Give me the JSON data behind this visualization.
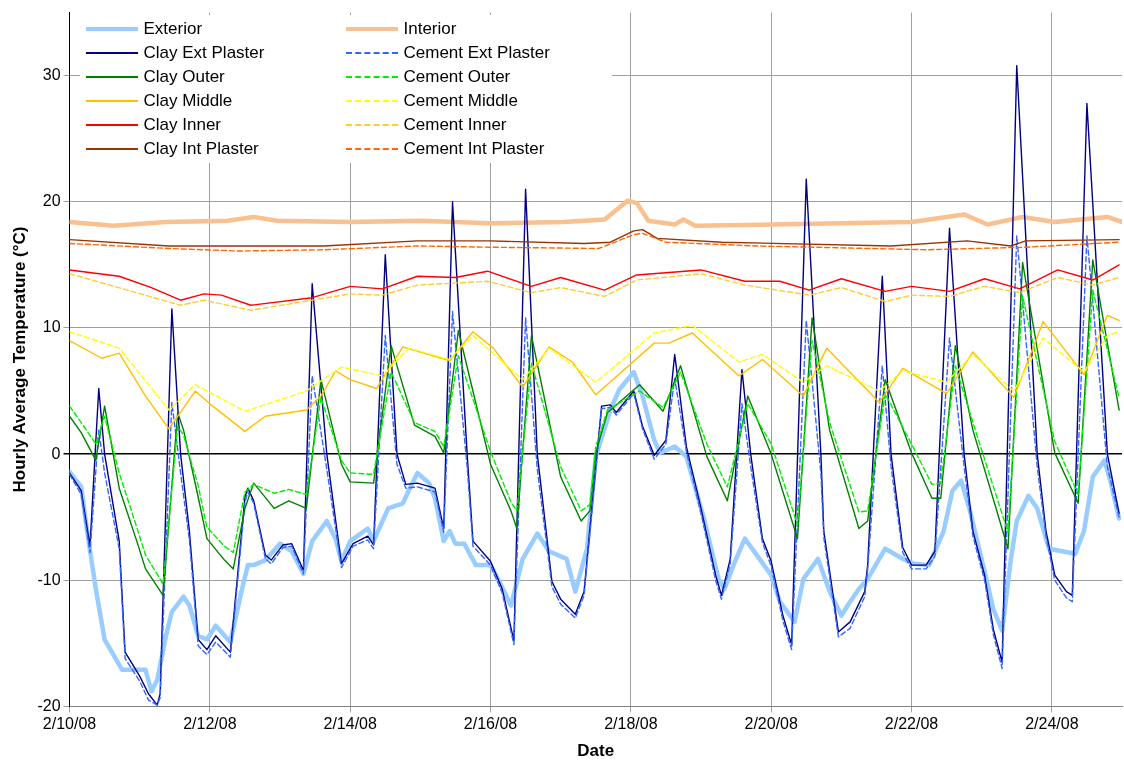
{
  "chart_data": {
    "type": "line",
    "xlabel": "Date",
    "ylabel": "Hourly Average Temperature (°C)",
    "xlim": [
      "--02-10",
      "--02-25"
    ],
    "ylim": [
      -20,
      35
    ],
    "xticks": [
      {
        "value": "--02-10",
        "label": "2/10/08"
      },
      {
        "value": "--02-12",
        "label": "2/12/08"
      },
      {
        "value": "--02-14",
        "label": "2/14/08"
      },
      {
        "value": "--02-16",
        "label": "2/16/08"
      },
      {
        "value": "--02-18",
        "label": "2/18/08"
      },
      {
        "value": "--02-20",
        "label": "2/20/08"
      },
      {
        "value": "--02-22",
        "label": "2/22/08"
      },
      {
        "value": "--02-24",
        "label": "2/24/08"
      }
    ],
    "yticks": [
      -20,
      -10,
      0,
      10,
      20,
      30
    ],
    "grid": true,
    "legend": "top left",
    "marker": "none",
    "series": [
      {
        "name": "Exterior",
        "color": "#99ccff",
        "line_style": "solid",
        "x": [
          "--02-10T00:00",
          "--02-10T04:00",
          "--02-10T06:00",
          "--02-10T09:00",
          "--02-10T12:00",
          "--02-10T18:00",
          "--02-10T21:00",
          "--02-11T02:00",
          "--02-11T04:00",
          "--02-11T06:00",
          "--02-11T09:00",
          "--02-11T11:00",
          "--02-11T15:00",
          "--02-11T17:00",
          "--02-11T20:00",
          "--02-11T23:00",
          "--02-12T02:00",
          "--02-12T07:00",
          "--02-12T11:00",
          "--02-12T13:00",
          "--02-12T15:00",
          "--02-12T19:00",
          "--02-13T00:00",
          "--02-13T04:00",
          "--02-13T08:00",
          "--02-13T11:00",
          "--02-13T16:00",
          "--02-13T19:00",
          "--02-13T21:00",
          "--02-14T00:00",
          "--02-14T06:00",
          "--02-14T08:00",
          "--02-14T13:00",
          "--02-14T18:00",
          "--02-14T20:00",
          "--02-14T23:00",
          "--02-15T03:00",
          "--02-15T05:00",
          "--02-15T08:00",
          "--02-15T10:00",
          "--02-15T12:00",
          "--02-15T15:00",
          "--02-15T19:00",
          "--02-16T00:00",
          "--02-16T03:00",
          "--02-16T07:00",
          "--02-16T11:00",
          "--02-16T16:00",
          "--02-16T20:00",
          "--02-17T02:00",
          "--02-17T05:00",
          "--02-17T09:00",
          "--02-17T12:00",
          "--02-17T17:00",
          "--02-17T20:00",
          "--02-18T01:00",
          "--02-18T04:00",
          "--02-18T08:00",
          "--02-18T10:00",
          "--02-18T15:00",
          "--02-18T19:00",
          "--02-19T01:00",
          "--02-19T06:00",
          "--02-19T08:00",
          "--02-19T12:00",
          "--02-19T15:00",
          "--02-19T20:00",
          "--02-20T00:00",
          "--02-20T03:00",
          "--02-20T08:00",
          "--02-20T11:00",
          "--02-20T16:00",
          "--02-20T20:00",
          "--02-21T00:00",
          "--02-21T03:00",
          "--02-21T06:00",
          "--02-21T09:00",
          "--02-21T15:00",
          "--02-21T21:00",
          "--02-22T01:00",
          "--02-22T06:00",
          "--02-22T11:00",
          "--02-22T14:00",
          "--02-22T17:00",
          "--02-22T20:00",
          "--02-23T01:00",
          "--02-23T04:00",
          "--02-23T07:00",
          "--02-23T10:00",
          "--02-23T12:00",
          "--02-23T16:00",
          "--02-23T19:00",
          "--02-23T23:00",
          "--02-24T08:00",
          "--02-24T11:00",
          "--02-24T14:00",
          "--02-24T18:00",
          "--02-24T20:00",
          "--02-24T23:00"
        ],
        "values": [
          -1.4,
          -2.6,
          -6.1,
          -10.7,
          -14.7,
          -17.1,
          -17.1,
          -17.1,
          -18.8,
          -17.9,
          -14.4,
          -12.5,
          -11.3,
          -12,
          -14.4,
          -14.7,
          -13.6,
          -14.9,
          -10.7,
          -8.8,
          -8.8,
          -8.4,
          -7.1,
          -7.7,
          -9.5,
          -6.9,
          -5.3,
          -6.7,
          -8.5,
          -6.9,
          -5.9,
          -6.9,
          -4.3,
          -3.9,
          -2.9,
          -1.5,
          -2.3,
          -3.5,
          -6.9,
          -6.1,
          -7.1,
          -7.1,
          -8.8,
          -8.8,
          -10.1,
          -12,
          -8.3,
          -6.3,
          -7.7,
          -8.3,
          -10.9,
          -7.5,
          -0.2,
          3.5,
          5.1,
          6.5,
          4.6,
          1.1,
          0.1,
          0.6,
          -0.2,
          -5.1,
          -9.9,
          -10.7,
          -8.3,
          -6.7,
          -8.3,
          -9.6,
          -11.7,
          -13.3,
          -9.9,
          -8.3,
          -10.9,
          -12.8,
          -11.7,
          -10.7,
          -9.9,
          -7.5,
          -8.3,
          -8.7,
          -8.8,
          -6.1,
          -2.9,
          -2.1,
          -4.5,
          -9.3,
          -12.3,
          -14,
          -8.3,
          -5.3,
          -3.3,
          -4.3,
          -7.5,
          -7.9,
          -6.1,
          -1.8,
          -0.5,
          -2.1,
          -5.1
        ]
      },
      {
        "name": "Interior",
        "color": "#fac090",
        "line_style": "solid",
        "x": [
          "--02-10T00:00",
          "--02-10T15:00",
          "--02-11T09:00",
          "--02-12T06:00",
          "--02-12T15:00",
          "--02-12T23:00",
          "--02-14T00:00",
          "--02-15T00:00",
          "--02-16T00:00",
          "--02-17T01:00",
          "--02-17T15:00",
          "--02-17T23:00",
          "--02-18T02:00",
          "--02-18T06:00",
          "--02-18T15:00",
          "--02-18T18:00",
          "--02-18T22:00",
          "--02-20T00:00",
          "--02-22T00:00",
          "--02-22T18:00",
          "--02-23T02:00",
          "--02-23T14:00",
          "--02-24T01:00",
          "--02-24T19:00",
          "--02-25T00:00"
        ],
        "values": [
          18.4,
          18.1,
          18.4,
          18.5,
          18.8,
          18.5,
          18.4,
          18.5,
          18.3,
          18.4,
          18.6,
          20.1,
          19.9,
          18.5,
          18.2,
          18.6,
          18.1,
          18.2,
          18.4,
          19,
          18.2,
          18.8,
          18.4,
          18.8,
          18.4
        ]
      },
      {
        "name": "Clay Ext Plaster",
        "color": "#000080",
        "line_style": "solid",
        "x": [
          "--02-10T00:00",
          "--02-10T04:00",
          "--02-10T07:00",
          "--02-10T10:00",
          "--02-10T12:00",
          "--02-10T17:00",
          "--02-10T19:00",
          "--02-11T00:00",
          "--02-11T03:00",
          "--02-11T06:00",
          "--02-11T07:00",
          "--02-11T11:00",
          "--02-11T14:00",
          "--02-11T17:00",
          "--02-11T20:00",
          "--02-11T23:00",
          "--02-12T02:00",
          "--02-12T07:00",
          "--02-12T08:00",
          "--02-12T12:00",
          "--02-12T13:00",
          "--02-12T15:00",
          "--02-12T19:00",
          "--02-12T21:00",
          "--02-13T01:00",
          "--02-13T04:00",
          "--02-13T08:00",
          "--02-13T11:00",
          "--02-13T16:00",
          "--02-13T21:00",
          "--02-14T01:00",
          "--02-14T06:00",
          "--02-14T08:00",
          "--02-14T12:00",
          "--02-14T16:00",
          "--02-14T19:00",
          "--02-14T23:00",
          "--02-15T05:00",
          "--02-15T08:00",
          "--02-15T11:00",
          "--02-15T16:00",
          "--02-15T18:00",
          "--02-16T00:00",
          "--02-16T04:00",
          "--02-16T08:00",
          "--02-16T12:00",
          "--02-16T16:00",
          "--02-16T21:00",
          "--02-17T00:00",
          "--02-17T05:00",
          "--02-17T08:00",
          "--02-17T11:00",
          "--02-17T14:00",
          "--02-17T17:00",
          "--02-17T19:00",
          "--02-18T01:00",
          "--02-18T04:00",
          "--02-18T08:00",
          "--02-18T12:00",
          "--02-18T15:00",
          "--02-18T19:00",
          "--02-19T00:00",
          "--02-19T05:00",
          "--02-19T07:00",
          "--02-19T10:00",
          "--02-19T14:00",
          "--02-19T17:00",
          "--02-19T21:00",
          "--02-20T00:00",
          "--02-20T04:00",
          "--02-20T07:00",
          "--02-20T12:00",
          "--02-20T17:00",
          "--02-20T18:00",
          "--02-20T23:00",
          "--02-21T03:00",
          "--02-21T08:00",
          "--02-21T09:00",
          "--02-21T14:00",
          "--02-21T17:00",
          "--02-21T21:00",
          "--02-22T00:00",
          "--02-22T05:00",
          "--02-22T08:00",
          "--02-22T13:00",
          "--02-22T18:00",
          "--02-22T21:00",
          "--02-23T01:00",
          "--02-23T04:00",
          "--02-23T07:00",
          "--02-23T12:00",
          "--02-23T19:00",
          "--02-23T22:00",
          "--02-24T01:00",
          "--02-24T05:00",
          "--02-24T07:00",
          "--02-24T12:00",
          "--02-24T19:00",
          "--02-24T23:00"
        ],
        "values": [
          -1.5,
          -2.9,
          -7.3,
          5.2,
          0,
          -6.9,
          -15.7,
          -17.6,
          -19,
          -19.9,
          -19,
          11.5,
          0,
          -6.1,
          -14.7,
          -15.5,
          -14.4,
          -15.7,
          -13.3,
          -3.4,
          -2.7,
          -3.7,
          -8,
          -8.4,
          -7.2,
          -7.1,
          -9.2,
          13.5,
          0,
          -8.7,
          -7.1,
          -6.5,
          -7.2,
          15.8,
          0,
          -2.4,
          -2.3,
          -2.7,
          -5.9,
          20,
          0,
          -6.9,
          -8.5,
          -10.7,
          -14.8,
          21,
          0,
          -10.1,
          -11.5,
          -12.7,
          -10.9,
          -3.4,
          3.8,
          3.9,
          3.3,
          5,
          2.2,
          -0.1,
          1.1,
          7.9,
          0.6,
          -4.3,
          -9.6,
          -11.2,
          -8.3,
          6.7,
          0,
          -6.7,
          -8.5,
          -12.8,
          -15.1,
          21.8,
          0,
          -6.1,
          -14.1,
          -13.3,
          -10.9,
          -8.8,
          14.1,
          0,
          -7.4,
          -8.8,
          -8.8,
          -7.7,
          17.9,
          0,
          -6.1,
          -9.6,
          -13.9,
          -16.5,
          30.8,
          0,
          -6.1,
          -9.6,
          -10.9,
          -11.2,
          27.8,
          0,
          -4.7
        ]
      },
      {
        "name": "Cement Ext Plaster",
        "color": "#3366ff",
        "line_style": "dashed",
        "x": [
          "--02-10T00:00",
          "--02-10T04:00",
          "--02-10T07:00",
          "--02-10T10:00",
          "--02-10T12:00",
          "--02-10T17:00",
          "--02-10T19:00",
          "--02-11T00:00",
          "--02-11T03:00",
          "--02-11T06:00",
          "--02-11T07:00",
          "--02-11T11:00",
          "--02-11T14:00",
          "--02-11T17:00",
          "--02-11T20:00",
          "--02-11T23:00",
          "--02-12T02:00",
          "--02-12T07:00",
          "--02-12T08:00",
          "--02-12T12:00",
          "--02-12T13:00",
          "--02-12T15:00",
          "--02-12T19:00",
          "--02-12T21:00",
          "--02-13T01:00",
          "--02-13T04:00",
          "--02-13T08:00",
          "--02-13T11:00",
          "--02-13T16:00",
          "--02-13T21:00",
          "--02-14T01:00",
          "--02-14T06:00",
          "--02-14T08:00",
          "--02-14T12:00",
          "--02-14T16:00",
          "--02-14T19:00",
          "--02-14T23:00",
          "--02-15T05:00",
          "--02-15T08:00",
          "--02-15T11:00",
          "--02-15T16:00",
          "--02-15T18:00",
          "--02-16T00:00",
          "--02-16T04:00",
          "--02-16T08:00",
          "--02-16T12:00",
          "--02-16T16:00",
          "--02-16T21:00",
          "--02-17T00:00",
          "--02-17T05:00",
          "--02-17T08:00",
          "--02-17T11:00",
          "--02-17T14:00",
          "--02-17T17:00",
          "--02-17T19:00",
          "--02-18T01:00",
          "--02-18T04:00",
          "--02-18T08:00",
          "--02-18T12:00",
          "--02-18T15:00",
          "--02-18T19:00",
          "--02-19T00:00",
          "--02-19T05:00",
          "--02-19T07:00",
          "--02-19T10:00",
          "--02-19T14:00",
          "--02-19T17:00",
          "--02-19T21:00",
          "--02-20T00:00",
          "--02-20T04:00",
          "--02-20T07:00",
          "--02-20T12:00",
          "--02-20T17:00",
          "--02-20T18:00",
          "--02-20T23:00",
          "--02-21T03:00",
          "--02-21T08:00",
          "--02-21T09:00",
          "--02-21T14:00",
          "--02-21T17:00",
          "--02-21T21:00",
          "--02-22T00:00",
          "--02-22T05:00",
          "--02-22T08:00",
          "--02-22T13:00",
          "--02-22T18:00",
          "--02-22T21:00",
          "--02-23T01:00",
          "--02-23T04:00",
          "--02-23T07:00",
          "--02-23T12:00",
          "--02-23T19:00",
          "--02-23T22:00",
          "--02-24T01:00",
          "--02-24T05:00",
          "--02-24T07:00",
          "--02-24T12:00",
          "--02-24T19:00",
          "--02-24T23:00"
        ],
        "values": [
          -1.6,
          -3.2,
          -7.8,
          1.9,
          -1.5,
          -7.5,
          -16.2,
          -18,
          -19.5,
          -19.9,
          -19.3,
          4.1,
          -1.5,
          -6.8,
          -15.2,
          -15.9,
          -14.9,
          -16.1,
          -13.8,
          -3.8,
          -3,
          -3.9,
          -8.3,
          -8.7,
          -7.4,
          -7.3,
          -9.5,
          6.2,
          -1.2,
          -9,
          -7.3,
          -6.8,
          -7.5,
          9.4,
          -0.8,
          -2.7,
          -2.6,
          -3,
          -6.2,
          11.3,
          -1,
          -7.3,
          -8.8,
          -11,
          -15.1,
          10.8,
          -1.2,
          -10.5,
          -11.9,
          -13,
          -11.2,
          -3.8,
          3.6,
          3.7,
          3.1,
          4.8,
          2,
          -0.4,
          0.8,
          6,
          0.2,
          -4.7,
          -10,
          -11.5,
          -8.7,
          4,
          -1,
          -7,
          -8.9,
          -13.2,
          -15.5,
          10.6,
          -1.5,
          -6.6,
          -14.5,
          -13.8,
          -11.3,
          -9.2,
          7,
          -1,
          -7.8,
          -9.1,
          -9.1,
          -8.1,
          9.2,
          -1,
          -6.5,
          -10,
          -14.3,
          -17,
          17.3,
          -1,
          -6.5,
          -10,
          -11.4,
          -11.7,
          17.3,
          -1,
          -5
        ]
      },
      {
        "name": "Clay Outer",
        "color": "#008000",
        "line_style": "solid",
        "x": [
          "--02-10T00:00",
          "--02-10T04:00",
          "--02-10T09:00",
          "--02-10T12:00",
          "--02-10T17:00",
          "--02-10T23:00",
          "--02-11T02:00",
          "--02-11T08:00",
          "--02-11T13:00",
          "--02-11T15:00",
          "--02-11T20:00",
          "--02-11T23:00",
          "--02-12T05:00",
          "--02-12T08:00",
          "--02-12T12:00",
          "--02-12T15:00",
          "--02-12T22:00",
          "--02-13T03:00",
          "--02-13T09:00",
          "--02-13T14:00",
          "--02-13T21:00",
          "--02-14T00:00",
          "--02-14T08:00",
          "--02-14T14:00",
          "--02-14T22:00",
          "--02-15T05:00",
          "--02-15T08:00",
          "--02-15T13:00",
          "--02-16T00:00",
          "--02-16T07:00",
          "--02-16T09:00",
          "--02-16T14:00",
          "--02-17T00:00",
          "--02-17T07:00",
          "--02-17T10:00",
          "--02-17T12:00",
          "--02-17T16:00",
          "--02-18T03:00",
          "--02-18T11:00",
          "--02-18T17:00",
          "--02-19T02:00",
          "--02-19T09:00",
          "--02-19T16:00",
          "--02-20T00:00",
          "--02-20T09:00",
          "--02-20T14:00",
          "--02-20T20:00",
          "--02-21T06:00",
          "--02-21T09:00",
          "--02-21T15:00",
          "--02-22T00:00",
          "--02-22T07:00",
          "--02-22T10:00",
          "--02-22T15:00",
          "--02-22T21:00",
          "--02-23T09:00",
          "--02-23T14:00",
          "--02-24T01:00",
          "--02-24T09:00",
          "--02-24T14:00",
          "--02-24T23:00"
        ],
        "values": [
          3,
          1.7,
          -0.5,
          3.8,
          -2.7,
          -6.9,
          -9.1,
          -11.2,
          3.3,
          1.9,
          -3.4,
          -6.7,
          -8.4,
          -9.1,
          -4.3,
          -2.3,
          -4.3,
          -3.7,
          -4.3,
          5.9,
          -0.8,
          -2.2,
          -2.3,
          8.6,
          2.3,
          1.4,
          0.1,
          9.8,
          -0.8,
          -4.5,
          -5.9,
          9.4,
          -1.8,
          -5.3,
          -4.5,
          0.1,
          3.3,
          5.5,
          3.4,
          7,
          -0.2,
          -3.7,
          4.6,
          0,
          -6.7,
          10.8,
          1.9,
          -5.9,
          -5.3,
          5.9,
          0.1,
          -3.5,
          -3.5,
          8.6,
          1.9,
          -7.5,
          15.2,
          0.1,
          -3.9,
          15.4,
          3.5
        ]
      },
      {
        "name": "Cement Outer",
        "color": "#00ee00",
        "line_style": "dashed",
        "x": [
          "--02-10T00:00",
          "--02-10T04:00",
          "--02-10T09:00",
          "--02-10T12:00",
          "--02-10T17:00",
          "--02-10T23:00",
          "--02-11T02:00",
          "--02-11T08:00",
          "--02-11T13:00",
          "--02-11T15:00",
          "--02-11T20:00",
          "--02-11T23:00",
          "--02-12T05:00",
          "--02-12T08:00",
          "--02-12T12:00",
          "--02-12T15:00",
          "--02-12T22:00",
          "--02-13T03:00",
          "--02-13T09:00",
          "--02-13T14:00",
          "--02-13T21:00",
          "--02-14T00:00",
          "--02-14T08:00",
          "--02-14T14:00",
          "--02-14T22:00",
          "--02-15T05:00",
          "--02-15T08:00",
          "--02-15T13:00",
          "--02-16T00:00",
          "--02-16T07:00",
          "--02-16T09:00",
          "--02-16T14:00",
          "--02-17T00:00",
          "--02-17T07:00",
          "--02-17T10:00",
          "--02-17T12:00",
          "--02-17T16:00",
          "--02-18T03:00",
          "--02-18T11:00",
          "--02-18T17:00",
          "--02-19T02:00",
          "--02-19T09:00",
          "--02-19T16:00",
          "--02-20T00:00",
          "--02-20T09:00",
          "--02-20T14:00",
          "--02-20T20:00",
          "--02-21T06:00",
          "--02-21T09:00",
          "--02-21T15:00",
          "--02-22T00:00",
          "--02-22T07:00",
          "--02-22T10:00",
          "--02-22T15:00",
          "--02-22T21:00",
          "--02-23T09:00",
          "--02-23T14:00",
          "--02-24T01:00",
          "--02-24T09:00",
          "--02-24T14:00",
          "--02-24T23:00"
        ],
        "values": [
          3.8,
          2.5,
          0.8,
          3,
          -1.5,
          -5.8,
          -8,
          -10.3,
          2.2,
          1.5,
          -2.5,
          -5.8,
          -7.3,
          -7.8,
          -3,
          -2.4,
          -3.1,
          -2.8,
          -3.2,
          4.5,
          -0.5,
          -1.5,
          -1.6,
          6.5,
          2.5,
          1.8,
          0.6,
          7.8,
          0.2,
          -3.8,
          -4.5,
          7.2,
          -1,
          -4.5,
          -4,
          0.6,
          3.5,
          5,
          3.7,
          6.5,
          0.8,
          -2.6,
          4,
          0.8,
          -5.6,
          9,
          2.5,
          -4.6,
          -4.5,
          4.8,
          0.8,
          -2.4,
          -2.3,
          7,
          2.5,
          -6.2,
          12.5,
          1,
          -3.2,
          13,
          4.5
        ]
      },
      {
        "name": "Clay Middle",
        "color": "#ffc000",
        "line_style": "solid",
        "x": [
          "--02-10T00:00",
          "--02-10T11:00",
          "--02-10T17:00",
          "--02-11T02:00",
          "--02-11T10:00",
          "--02-11T19:00",
          "--02-12T01:00",
          "--02-12T12:00",
          "--02-12T19:00",
          "--02-13T09:00",
          "--02-13T14:00",
          "--02-13T19:00",
          "--02-14T00:00",
          "--02-14T09:00",
          "--02-14T18:00",
          "--02-15T10:00",
          "--02-15T18:00",
          "--02-16T01:00",
          "--02-16T11:00",
          "--02-16T20:00",
          "--02-17T04:00",
          "--02-17T12:00",
          "--02-18T08:00",
          "--02-18T13:00",
          "--02-18T21:00",
          "--02-19T13:00",
          "--02-19T21:00",
          "--02-20T11:00",
          "--02-20T19:00",
          "--02-21T13:00",
          "--02-21T21:00",
          "--02-22T12:00",
          "--02-22T21:00",
          "--02-23T11:00",
          "--02-23T21:00",
          "--02-24T11:00",
          "--02-24T19:00",
          "--02-24T23:00"
        ],
        "values": [
          9,
          7.6,
          8,
          4.6,
          2,
          5,
          3.8,
          1.8,
          3,
          3.5,
          4.6,
          6.6,
          5.9,
          5.2,
          8.5,
          7.4,
          9.7,
          8.4,
          5.3,
          8.5,
          7.3,
          4.7,
          8.8,
          8.8,
          9.6,
          6.2,
          7.5,
          4.6,
          8.4,
          4.1,
          6.8,
          4.8,
          8.1,
          4.5,
          10.5,
          6.3,
          11,
          10.6
        ]
      },
      {
        "name": "Cement Middle",
        "color": "#ffff00",
        "line_style": "dashed",
        "x": [
          "--02-10T00:00",
          "--02-10T17:00",
          "--02-11T10:00",
          "--02-11T19:00",
          "--02-12T12:00",
          "--02-13T09:00",
          "--02-13T21:00",
          "--02-14T11:00",
          "--02-14T20:00",
          "--02-15T10:00",
          "--02-15T18:00",
          "--02-16T11:00",
          "--02-16T20:00",
          "--02-17T12:00",
          "--02-18T08:00",
          "--02-18T21:00",
          "--02-19T13:00",
          "--02-19T21:00",
          "--02-20T11:00",
          "--02-20T19:00",
          "--02-21T13:00",
          "--02-21T21:00",
          "--02-22T12:00",
          "--02-22T21:00",
          "--02-23T11:00",
          "--02-23T21:00",
          "--02-24T11:00",
          "--02-24T19:00",
          "--02-24T23:00"
        ],
        "values": [
          9.7,
          8.4,
          3.5,
          5.5,
          3.4,
          5,
          6.9,
          6.2,
          8.4,
          7.5,
          9.4,
          5.9,
          8.4,
          5.7,
          9.6,
          10.2,
          7.3,
          7.9,
          5.7,
          7,
          5,
          6.6,
          5.7,
          7.9,
          5,
          9.2,
          6.5,
          9.4,
          9.7
        ]
      },
      {
        "name": "Clay Inner",
        "color": "#ff0000",
        "line_style": "solid",
        "x": [
          "--02-10T00:00",
          "--02-10T17:00",
          "--02-11T04:00",
          "--02-11T14:00",
          "--02-11T22:00",
          "--02-12T04:00",
          "--02-12T14:00",
          "--02-13T11:00",
          "--02-14T00:00",
          "--02-14T11:00",
          "--02-14T23:00",
          "--02-15T12:00",
          "--02-15T23:00",
          "--02-16T14:00",
          "--02-17T00:00",
          "--02-17T15:00",
          "--02-18T02:00",
          "--02-19T00:00",
          "--02-19T15:00",
          "--02-20T03:00",
          "--02-20T13:00",
          "--02-21T00:00",
          "--02-21T15:00",
          "--02-22T00:00",
          "--02-22T13:00",
          "--02-23T01:00",
          "--02-23T13:00",
          "--02-24T02:00",
          "--02-24T14:00",
          "--02-24T23:00"
        ],
        "values": [
          14.6,
          14.1,
          13.2,
          12.2,
          12.7,
          12.6,
          11.8,
          12.4,
          13.3,
          13.1,
          14.1,
          14,
          14.5,
          13.3,
          14,
          13,
          14.2,
          14.6,
          13.7,
          13.7,
          13,
          13.9,
          12.9,
          13.3,
          12.9,
          13.9,
          13.1,
          14.6,
          13.8,
          15
        ]
      },
      {
        "name": "Cement Inner",
        "color": "#ffcc33",
        "line_style": "dashed",
        "x": [
          "--02-10T00:00",
          "--02-11T14:00",
          "--02-11T22:00",
          "--02-12T14:00",
          "--02-14T00:00",
          "--02-14T11:00",
          "--02-14T23:00",
          "--02-15T23:00",
          "--02-16T14:00",
          "--02-17T00:00",
          "--02-17T15:00",
          "--02-18T02:00",
          "--02-19T00:00",
          "--02-19T15:00",
          "--02-20T13:00",
          "--02-21T00:00",
          "--02-21T15:00",
          "--02-22T00:00",
          "--02-22T13:00",
          "--02-23T01:00",
          "--02-23T13:00",
          "--02-24T02:00",
          "--02-24T14:00",
          "--02-24T23:00"
        ],
        "values": [
          14.3,
          11.8,
          12.2,
          11.4,
          12.7,
          12.6,
          13.4,
          13.7,
          12.8,
          13.2,
          12.5,
          13.8,
          14.3,
          13.4,
          12.6,
          13.2,
          12.1,
          12.6,
          12.5,
          13.3,
          12.8,
          14,
          13.4,
          14
        ]
      },
      {
        "name": "Clay Int Plaster",
        "color": "#993300",
        "line_style": "solid",
        "x": [
          "--02-10T00:00",
          "--02-11T10:00",
          "--02-13T15:00",
          "--02-14T23:00",
          "--02-16T00:00",
          "--02-17T08:00",
          "--02-17T17:00",
          "--02-18T01:00",
          "--02-18T04:00",
          "--02-18T09:00",
          "--02-19T07:00",
          "--02-21T17:00",
          "--02-22T19:00",
          "--02-23T10:00",
          "--02-23T15:00",
          "--02-24T23:00"
        ],
        "values": [
          17,
          16.5,
          16.5,
          16.9,
          16.9,
          16.7,
          16.8,
          17.7,
          17.8,
          17.1,
          16.8,
          16.5,
          16.9,
          16.5,
          16.9,
          17
        ]
      },
      {
        "name": "Cement Int Plaster",
        "color": "#ff6600",
        "line_style": "dashed",
        "x": [
          "--02-10T00:00",
          "--02-11T10:00",
          "--02-12T10:00",
          "--02-13T15:00",
          "--02-14T23:00",
          "--02-16T00:00",
          "--02-17T13:00",
          "--02-18T01:00",
          "--02-18T04:00",
          "--02-18T12:00",
          "--02-19T19:00",
          "--02-22T05:00",
          "--02-23T15:00",
          "--02-24T23:00"
        ],
        "values": [
          16.7,
          16.3,
          16.1,
          16.2,
          16.5,
          16.4,
          16.3,
          17.4,
          17.5,
          16.8,
          16.5,
          16.2,
          16.4,
          16.8
        ]
      }
    ]
  }
}
